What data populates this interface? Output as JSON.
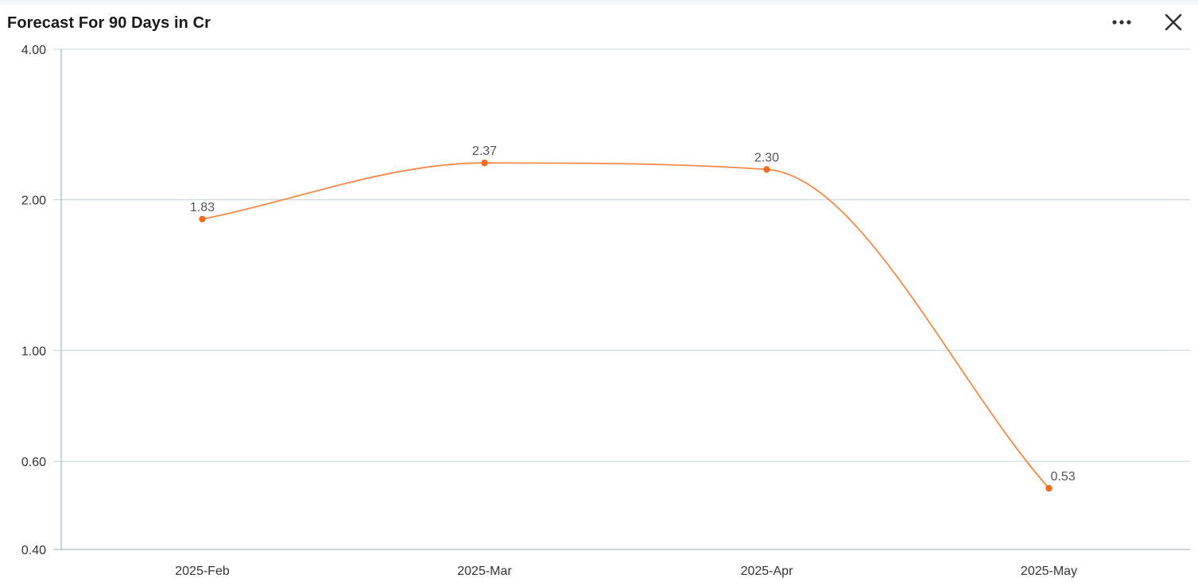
{
  "panel": {
    "title": "Forecast For 90 Days in Cr",
    "menu_icon": "more-horizontal-icon",
    "close_icon": "close-icon"
  },
  "colors": {
    "series": "#f5894a",
    "marker": "#ef6c21",
    "grid": "#c5d0da",
    "axis": "#9aa7b3"
  },
  "chart_data": {
    "type": "line",
    "title": "Forecast For 90 Days in Cr",
    "xlabel": "",
    "ylabel": "",
    "y_scale": "log",
    "ylim": [
      0.4,
      4.0
    ],
    "y_ticks": [
      "4.00",
      "2.00",
      "1.00",
      "0.60",
      "0.40"
    ],
    "y_tick_values": [
      4.0,
      2.0,
      1.0,
      0.6,
      0.4
    ],
    "categories": [
      "2025-Feb",
      "2025-Mar",
      "2025-Apr",
      "2025-May"
    ],
    "series": [
      {
        "values": [
          1.83,
          2.37,
          2.3,
          0.53
        ],
        "labels": [
          "1.83",
          "2.37",
          "2.30",
          "0.53"
        ]
      }
    ],
    "grid": true,
    "legend": "none"
  }
}
